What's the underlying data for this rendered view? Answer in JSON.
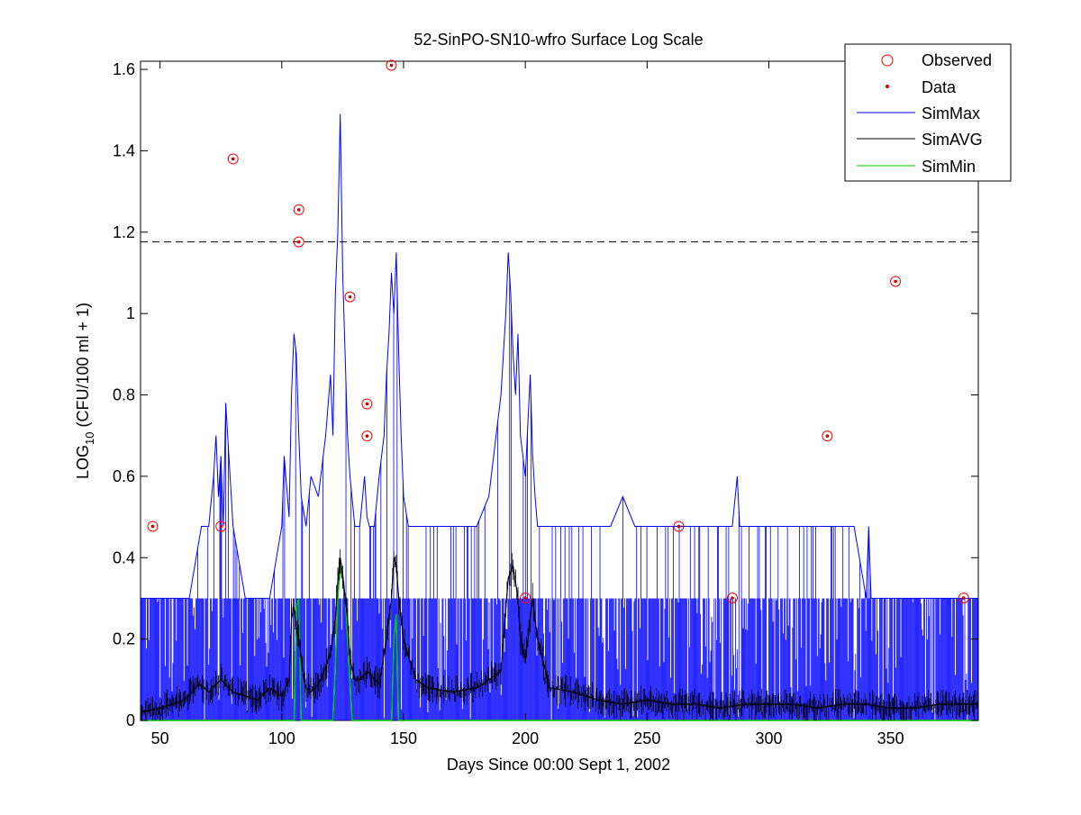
{
  "chart_data": {
    "type": "line",
    "title": "52-SinPO-SN10-wfro Surface Log Scale",
    "xlabel": "Days Since 00:00 Sept 1, 2002",
    "ylabel": {
      "base": "LOG",
      "sub": "10",
      "rest": " (CFU/100 ml + 1)"
    },
    "xlim": [
      42,
      386
    ],
    "ylim": [
      0,
      1.62
    ],
    "x_ticks": [
      50,
      100,
      150,
      200,
      250,
      300,
      350
    ],
    "y_ticks": [
      0,
      0.2,
      0.4,
      0.6,
      0.8,
      1,
      1.2,
      1.4,
      1.6
    ],
    "y_tick_labels": [
      "0",
      "0.2",
      "0.4",
      "0.6",
      "0.8",
      "1",
      "1.2",
      "1.4",
      "1.6"
    ],
    "legend_position": "top-right",
    "reference_line": {
      "y": 1.176,
      "style": "dashed",
      "color": "#000000"
    },
    "colors": {
      "observed": "#ff0000",
      "data": "#cc0000",
      "sim_max": "#0000ff",
      "sim_avg": "#000000",
      "sim_min": "#00cc00"
    },
    "series": [
      {
        "name": "Observed",
        "marker": "open-circle",
        "x": [
          47,
          75,
          80,
          107,
          107,
          128,
          135,
          135,
          145,
          200,
          263,
          285,
          324,
          352,
          380
        ],
        "y": [
          0.477,
          0.477,
          1.38,
          1.255,
          1.176,
          1.041,
          0.778,
          0.699,
          1.61,
          0.301,
          0.477,
          0.301,
          0.699,
          1.079,
          0.301
        ]
      },
      {
        "name": "Data",
        "marker": "dot",
        "x": [
          47,
          75,
          80,
          107,
          107,
          128,
          135,
          135,
          145,
          200,
          263,
          285,
          324,
          352,
          380
        ],
        "y": [
          0.477,
          0.477,
          1.38,
          1.255,
          1.176,
          1.041,
          0.778,
          0.699,
          1.61,
          0.301,
          0.477,
          0.301,
          0.699,
          1.079,
          0.301
        ]
      },
      {
        "name": "SimMax",
        "style": "line",
        "x": [
          42,
          47,
          52,
          57,
          62,
          67,
          70,
          72,
          73,
          74,
          75,
          76,
          77,
          80,
          85,
          90,
          95,
          100,
          101,
          103,
          104,
          105,
          106,
          107,
          108,
          110,
          112,
          115,
          118,
          120,
          121,
          122,
          123,
          124,
          125,
          126,
          127,
          128,
          130,
          132,
          134,
          135,
          136,
          138,
          140,
          142,
          143,
          144,
          145,
          146,
          147,
          148,
          149,
          150,
          152,
          155,
          160,
          165,
          170,
          175,
          180,
          185,
          188,
          190,
          192,
          193,
          194,
          195,
          196,
          197,
          198,
          200,
          202,
          203,
          204,
          205,
          207,
          210,
          215,
          220,
          225,
          230,
          235,
          240,
          245,
          250,
          255,
          260,
          265,
          270,
          275,
          280,
          285,
          287,
          288,
          289,
          290,
          295,
          300,
          305,
          310,
          315,
          320,
          325,
          330,
          335,
          340,
          341,
          342,
          345,
          350,
          355,
          360,
          365,
          370,
          375,
          380,
          386
        ],
        "y": [
          0.3,
          0.3,
          0.3,
          0.3,
          0.3,
          0.477,
          0.477,
          0.6,
          0.7,
          0.55,
          0.65,
          0.477,
          0.78,
          0.477,
          0.3,
          0.3,
          0.3,
          0.477,
          0.65,
          0.5,
          0.8,
          0.95,
          0.9,
          0.7,
          0.55,
          0.477,
          0.6,
          0.55,
          0.7,
          0.85,
          0.7,
          1.05,
          1.2,
          1.49,
          1.1,
          0.9,
          0.7,
          0.6,
          0.477,
          0.477,
          0.6,
          0.5,
          0.477,
          0.477,
          0.6,
          0.7,
          0.85,
          0.95,
          1.1,
          1.0,
          1.15,
          0.9,
          0.7,
          0.55,
          0.477,
          0.477,
          0.477,
          0.477,
          0.477,
          0.477,
          0.477,
          0.55,
          0.7,
          0.8,
          1.0,
          1.15,
          1.05,
          0.9,
          0.8,
          0.95,
          0.7,
          0.6,
          0.85,
          0.65,
          0.55,
          0.477,
          0.477,
          0.477,
          0.477,
          0.477,
          0.477,
          0.477,
          0.477,
          0.55,
          0.477,
          0.477,
          0.477,
          0.477,
          0.477,
          0.477,
          0.477,
          0.477,
          0.477,
          0.6,
          0.477,
          0.477,
          0.477,
          0.477,
          0.477,
          0.477,
          0.477,
          0.477,
          0.477,
          0.477,
          0.477,
          0.477,
          0.3,
          0.477,
          0.3,
          0.3,
          0.3,
          0.3,
          0.3,
          0.3,
          0.3,
          0.3,
          0.3,
          0.3
        ]
      },
      {
        "name": "SimAVG",
        "style": "line",
        "x": [
          42,
          50,
          60,
          66,
          70,
          75,
          80,
          85,
          90,
          95,
          100,
          103,
          104,
          105,
          106,
          107,
          108,
          109,
          110,
          112,
          115,
          118,
          120,
          122,
          123,
          124,
          125,
          126,
          127,
          128,
          130,
          132,
          135,
          140,
          143,
          145,
          146,
          147,
          148,
          150,
          155,
          160,
          170,
          180,
          190,
          193,
          195,
          197,
          198,
          200,
          202,
          203,
          205,
          207,
          210,
          220,
          230,
          240,
          250,
          260,
          270,
          280,
          290,
          300,
          310,
          320,
          330,
          340,
          350,
          360,
          370,
          380,
          386
        ],
        "y": [
          0.02,
          0.03,
          0.05,
          0.09,
          0.07,
          0.1,
          0.07,
          0.06,
          0.05,
          0.08,
          0.06,
          0.1,
          0.25,
          0.28,
          0.23,
          0.2,
          0.15,
          0.1,
          0.08,
          0.07,
          0.09,
          0.13,
          0.17,
          0.25,
          0.34,
          0.4,
          0.36,
          0.3,
          0.25,
          0.15,
          0.1,
          0.1,
          0.12,
          0.09,
          0.2,
          0.3,
          0.4,
          0.38,
          0.3,
          0.2,
          0.1,
          0.08,
          0.07,
          0.08,
          0.12,
          0.35,
          0.38,
          0.3,
          0.2,
          0.15,
          0.25,
          0.3,
          0.2,
          0.15,
          0.08,
          0.07,
          0.05,
          0.04,
          0.05,
          0.04,
          0.04,
          0.03,
          0.04,
          0.04,
          0.04,
          0.03,
          0.04,
          0.04,
          0.03,
          0.03,
          0.04,
          0.04,
          0.04
        ]
      },
      {
        "name": "SimMin",
        "style": "line",
        "x": [
          42,
          105,
          106,
          107,
          108,
          121,
          122,
          123,
          124,
          125,
          126,
          127,
          128,
          129,
          145,
          146,
          147,
          148,
          386
        ],
        "y": [
          0,
          0,
          0.28,
          0.3,
          0,
          0,
          0.12,
          0.3,
          0.38,
          0.35,
          0.3,
          0.2,
          0.1,
          0,
          0,
          0.2,
          0.26,
          0,
          0
        ]
      }
    ]
  }
}
